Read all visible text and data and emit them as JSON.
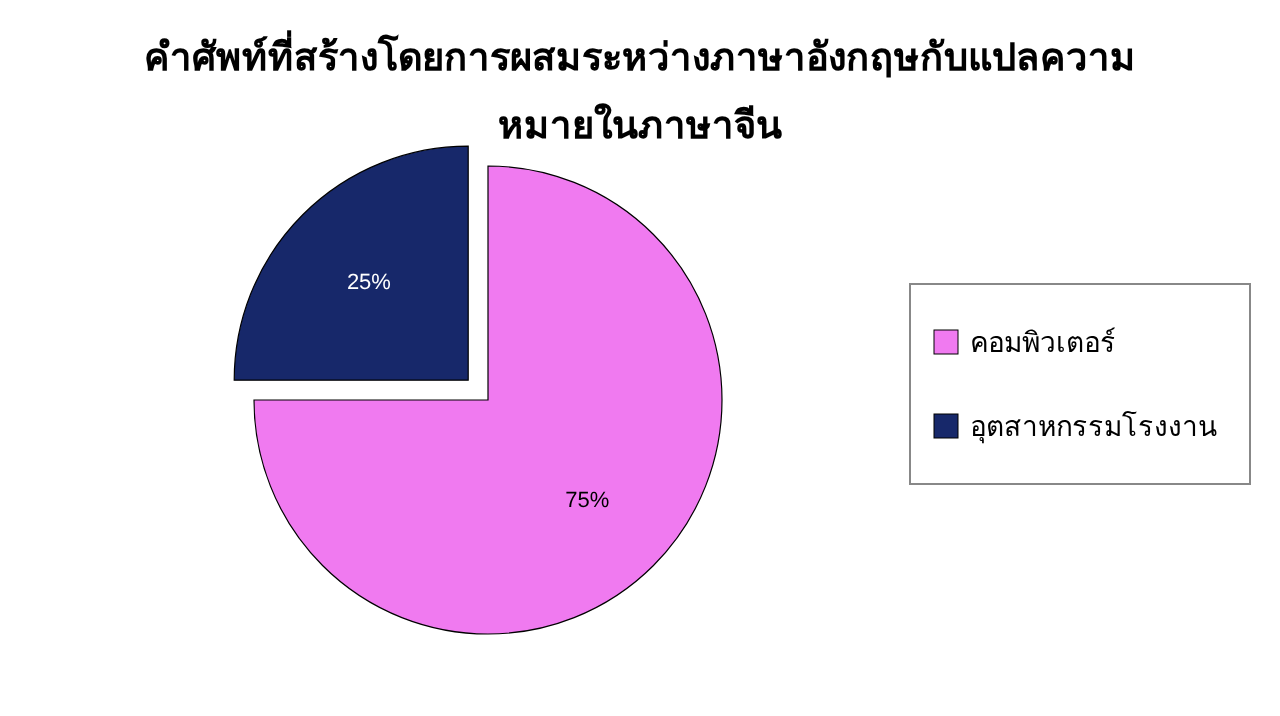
{
  "chart_data": {
    "type": "pie",
    "title": "คำศัพท์ที่สร้างโดยการผสมระหว่างภาษาอังกฤษกับแปลความหมายในภาษาจีน",
    "categories": [
      "คอมพิวเตอร์",
      "อุตสาหกรรมโรงงาน"
    ],
    "values": [
      75,
      25
    ],
    "colors": [
      "#f07af0",
      "#17286a"
    ],
    "value_labels": [
      "75%",
      "25%"
    ],
    "legend": "right"
  }
}
